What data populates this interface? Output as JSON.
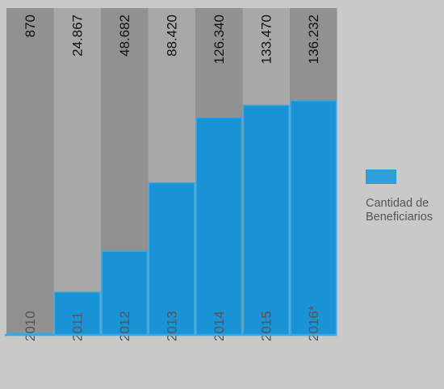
{
  "chart_data": {
    "type": "bar",
    "categories": [
      "2010",
      "2011",
      "2012",
      "2013",
      "2014",
      "2015",
      "2016*"
    ],
    "series": [
      {
        "name": "Cantidad de Beneficiarios",
        "values": [
          870,
          24867,
          48682,
          88420,
          126340,
          133470,
          136232
        ],
        "labels": [
          "870",
          "24.867",
          "48.682",
          "88.420",
          "126.340",
          "133.470",
          "136.232"
        ]
      }
    ],
    "ylim": [
      0,
      190000
    ],
    "legend_position": "right",
    "colors": {
      "bar": "#1a92d6",
      "bar_border": "#3aaae6",
      "column_dark": "#919191",
      "column_light": "#a8a8a8",
      "baseline": "#3aaae6",
      "value_text": "#111111",
      "tick_text": "#555555",
      "legend_swatch": "#2e9fdc",
      "background": "#c9c9c9"
    }
  },
  "legend": {
    "label": "Cantidad de Beneficiarios"
  }
}
